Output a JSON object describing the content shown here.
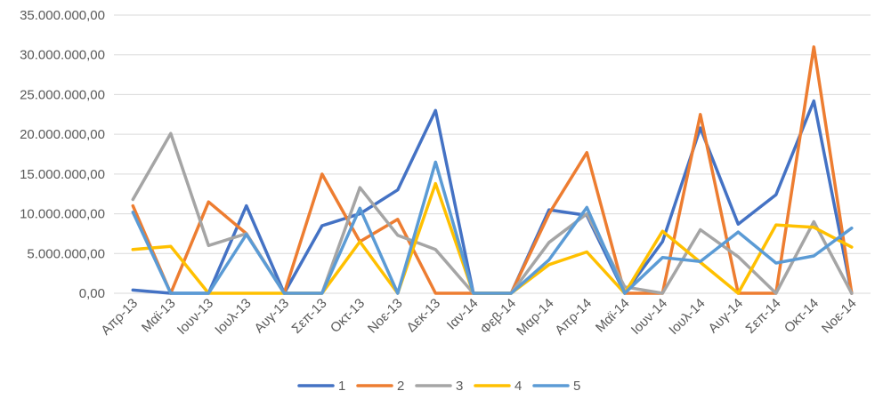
{
  "chart_data": {
    "type": "line",
    "title": "",
    "xlabel": "",
    "ylabel": "",
    "ylim": [
      0,
      35000000
    ],
    "y_ticks": [
      {
        "value": 0,
        "label": "0,00"
      },
      {
        "value": 5000000,
        "label": "5.000.000,00"
      },
      {
        "value": 10000000,
        "label": "10.000.000,00"
      },
      {
        "value": 15000000,
        "label": "15.000.000,00"
      },
      {
        "value": 20000000,
        "label": "20.000.000,00"
      },
      {
        "value": 25000000,
        "label": "25.000.000,00"
      },
      {
        "value": 30000000,
        "label": "30.000.000,00"
      },
      {
        "value": 35000000,
        "label": "35.000.000,00"
      }
    ],
    "grid": true,
    "legend_position": "bottom",
    "categories": [
      "Απρ-13",
      "Μαϊ-13",
      "Ιουν-13",
      "Ιουλ-13",
      "Αυγ-13",
      "Σεπ-13",
      "Οκτ-13",
      "Νοε-13",
      "Δεκ-13",
      "Ιαν-14",
      "Φεβ-14",
      "Μαρ-14",
      "Απρ-14",
      "Μαϊ-14",
      "Ιουν-14",
      "Ιουλ-14",
      "Αυγ-14",
      "Σεπ-14",
      "Οκτ-14",
      "Νοε-14"
    ],
    "series": [
      {
        "name": "1",
        "color": "#4472c4",
        "values": [
          400000,
          0,
          0,
          11000000,
          0,
          8500000,
          10000000,
          13000000,
          23000000,
          0,
          0,
          10500000,
          9800000,
          0,
          6500000,
          20800000,
          8700000,
          12400000,
          24200000,
          0
        ]
      },
      {
        "name": "2",
        "color": "#ed7d31",
        "values": [
          11000000,
          0,
          11500000,
          7500000,
          0,
          15000000,
          6500000,
          9300000,
          0,
          0,
          0,
          10000000,
          17700000,
          0,
          0,
          22500000,
          0,
          0,
          31000000,
          0
        ]
      },
      {
        "name": "3",
        "color": "#a5a5a5",
        "values": [
          11800000,
          20100000,
          6000000,
          7500000,
          0,
          0,
          13300000,
          7300000,
          5500000,
          0,
          0,
          6400000,
          10000000,
          800000,
          0,
          8000000,
          4600000,
          0,
          9000000,
          0
        ]
      },
      {
        "name": "4",
        "color": "#ffc000",
        "values": [
          5500000,
          5900000,
          0,
          0,
          0,
          0,
          6500000,
          0,
          13800000,
          0,
          0,
          3600000,
          5200000,
          0,
          7800000,
          3900000,
          0,
          8600000,
          8300000,
          5800000
        ]
      },
      {
        "name": "5",
        "color": "#5b9bd5",
        "values": [
          10200000,
          0,
          0,
          7400000,
          0,
          0,
          10700000,
          0,
          16500000,
          0,
          0,
          4200000,
          10800000,
          0,
          4500000,
          4000000,
          7700000,
          3800000,
          4700000,
          8200000
        ]
      }
    ]
  }
}
